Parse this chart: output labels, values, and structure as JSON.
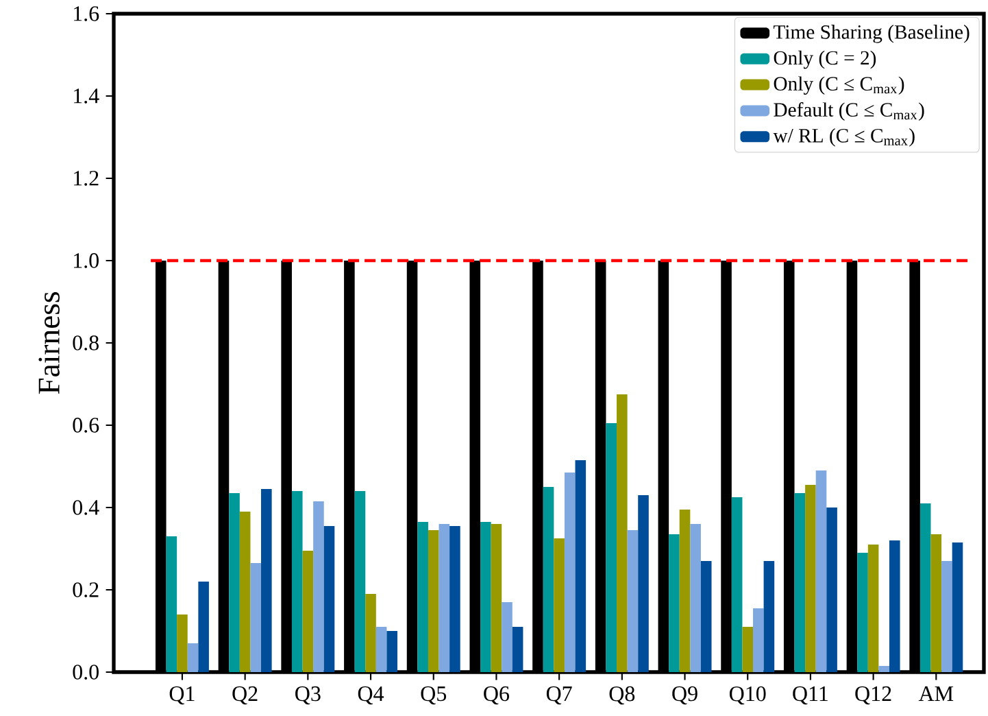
{
  "chart_data": {
    "type": "bar",
    "ylabel": "Fairness",
    "categories": [
      "Q1",
      "Q2",
      "Q3",
      "Q4",
      "Q5",
      "Q6",
      "Q7",
      "Q8",
      "Q9",
      "Q10",
      "Q11",
      "Q12",
      "AM"
    ],
    "series": [
      {
        "name": "Time Sharing (Baseline)",
        "color": "#000000",
        "values": [
          1,
          1,
          1,
          1,
          1,
          1,
          1,
          1,
          1,
          1,
          1,
          1,
          1
        ]
      },
      {
        "name": "Only (C = 2)",
        "color": "#009999",
        "values": [
          0.33,
          0.435,
          0.44,
          0.44,
          0.365,
          0.365,
          0.45,
          0.605,
          0.335,
          0.425,
          0.435,
          0.29,
          0.41
        ]
      },
      {
        "name": "Only (C ≤ C$_{max}$)",
        "color": "#999900",
        "values": [
          0.14,
          0.39,
          0.295,
          0.19,
          0.345,
          0.36,
          0.325,
          0.675,
          0.395,
          0.11,
          0.455,
          0.31,
          0.335
        ]
      },
      {
        "name": "Default (C ≤ C$_{max}$)",
        "color": "#80a8e0",
        "values": [
          0.07,
          0.265,
          0.415,
          0.11,
          0.36,
          0.17,
          0.485,
          0.345,
          0.36,
          0.155,
          0.49,
          0.015,
          0.27
        ]
      },
      {
        "name": "w/ RL (C ≤ C$_{max}$)",
        "color": "#004d99",
        "values": [
          0.22,
          0.445,
          0.355,
          0.1,
          0.355,
          0.11,
          0.515,
          0.43,
          0.27,
          0.27,
          0.4,
          0.32,
          0.315
        ]
      }
    ],
    "ylim": [
      0,
      1.6
    ],
    "yticks": [
      {
        "value": 0,
        "label": "0.0"
      },
      {
        "value": 0.2,
        "label": "0.2"
      },
      {
        "value": 0.4,
        "label": "0.4"
      },
      {
        "value": 0.6,
        "label": "0.6"
      },
      {
        "value": 0.8,
        "label": "0.8"
      },
      {
        "value": 1,
        "label": "1.0"
      },
      {
        "value": 1.2,
        "label": "1.2"
      },
      {
        "value": 1.4,
        "label": "1.4"
      },
      {
        "value": 1.6,
        "label": "1.6"
      }
    ],
    "ref_lines": [
      {
        "axis": "y",
        "value": 1,
        "color": "#ff0000",
        "line_style": "dashed"
      }
    ],
    "legend": "top right",
    "grid": false
  }
}
